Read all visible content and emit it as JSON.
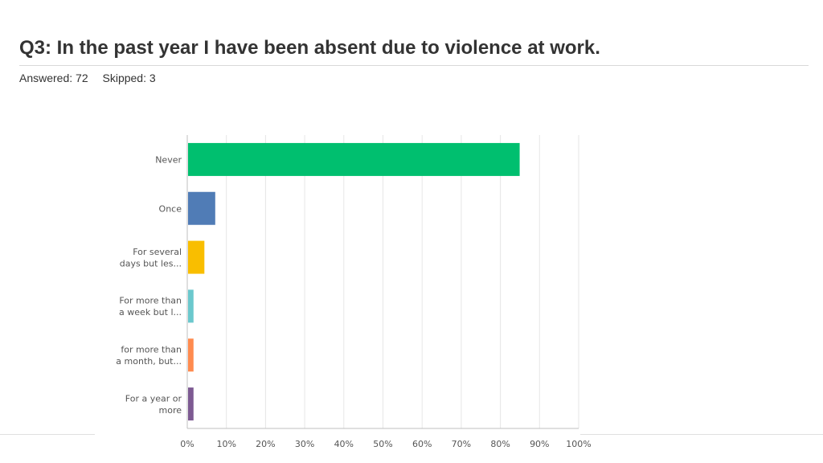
{
  "title": "Q3: In the past year I have been absent due to violence at work.",
  "answered": "Answered: 72",
  "skipped": "Skipped: 3",
  "chart_data": {
    "type": "bar",
    "orientation": "horizontal",
    "categories": [
      [
        "Never"
      ],
      [
        "Once"
      ],
      [
        "For several",
        "days but les..."
      ],
      [
        "For more than",
        "a week but l..."
      ],
      [
        "for more than",
        "a month, but..."
      ],
      [
        "For a year or",
        "more"
      ]
    ],
    "values": [
      84.72,
      6.94,
      4.17,
      1.39,
      1.39,
      1.39
    ],
    "colors": [
      "#00bf6f",
      "#507cb6",
      "#f9be00",
      "#6bc8cd",
      "#ff8b4f",
      "#7d5a92"
    ],
    "xlim": [
      0,
      100
    ],
    "xticks": [
      "0%",
      "10%",
      "20%",
      "30%",
      "40%",
      "50%",
      "60%",
      "70%",
      "80%",
      "90%",
      "100%"
    ],
    "grid": true,
    "xlabel": "",
    "ylabel": ""
  }
}
